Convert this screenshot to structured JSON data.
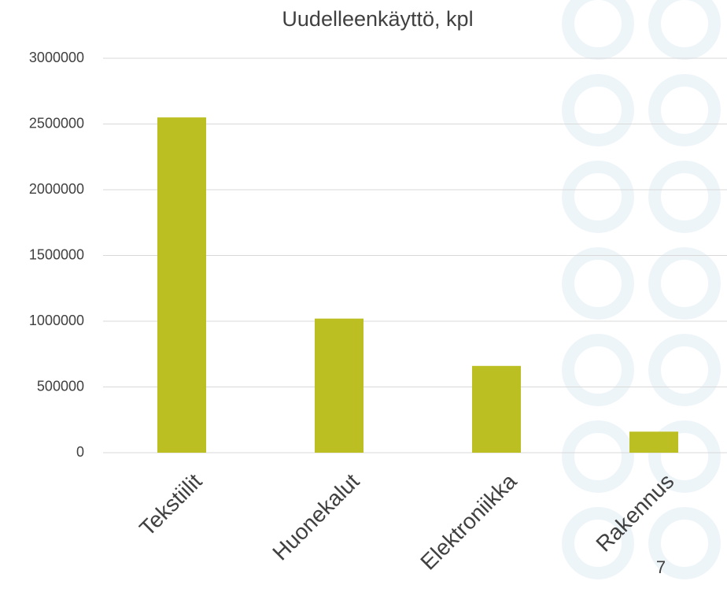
{
  "chart_data": {
    "type": "bar",
    "title": "Uudelleenkäyttö, kpl",
    "categories": [
      "Tekstiilit",
      "Huonekalut",
      "Elektroniikka",
      "Rakennus"
    ],
    "values": [
      2550000,
      1020000,
      660000,
      160000
    ],
    "color": "#bcbf22",
    "ylim": [
      0,
      3000000
    ],
    "yticks": [
      0,
      500000,
      1000000,
      1500000,
      2000000,
      2500000,
      3000000
    ],
    "grid": true
  },
  "page_number": "7"
}
